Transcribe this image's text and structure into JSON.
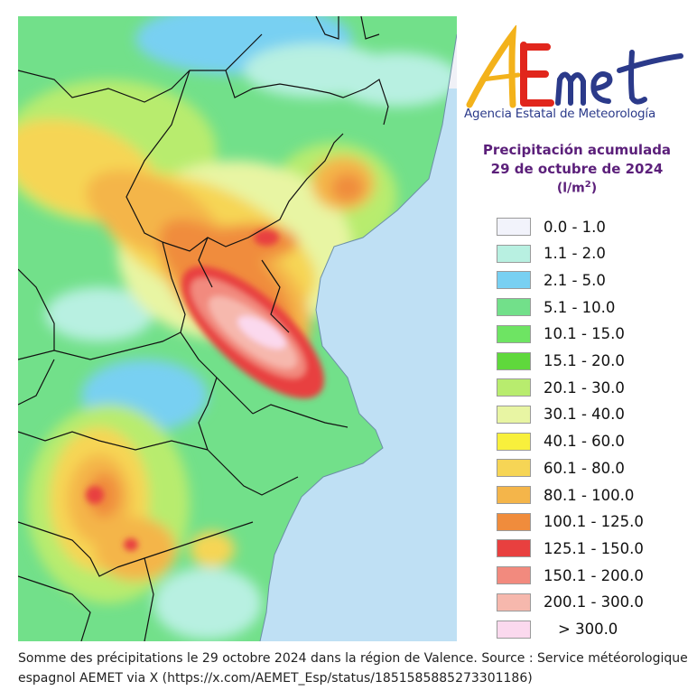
{
  "logo": {
    "wordmark": "AEmet",
    "agency_name": "Agencia Estatal de Meteorología",
    "colors": {
      "A": "#f3b21b",
      "E": "#e1261c",
      "met": "#2b3a8a"
    }
  },
  "map_title": {
    "line1": "Precipitación acumulada",
    "line2": "29 de octubre de 2024",
    "unit_base": "(l/m",
    "unit_sup": "2",
    "unit_end": ")"
  },
  "legend": [
    {
      "label": "0.0 - 1.0",
      "color": "#f2f3fb"
    },
    {
      "label": "1.1 - 2.0",
      "color": "#b8f0e1"
    },
    {
      "label": "2.1 - 5.0",
      "color": "#78d0f2"
    },
    {
      "label": "5.1 - 10.0",
      "color": "#72e08a"
    },
    {
      "label": "10.1 - 15.0",
      "color": "#6ee463"
    },
    {
      "label": "15.1 - 20.0",
      "color": "#5fd83c"
    },
    {
      "label": "20.1 - 30.0",
      "color": "#b8ec6e"
    },
    {
      "label": "30.1 - 40.0",
      "color": "#e8f5a3"
    },
    {
      "label": "40.1 - 60.0",
      "color": "#f8f03c"
    },
    {
      "label": "60.1 - 80.0",
      "color": "#f6d555"
    },
    {
      "label": "80.1 - 100.0",
      "color": "#f4b54a"
    },
    {
      "label": "100.1 - 125.0",
      "color": "#f08c3c"
    },
    {
      "label": "125.1 - 150.0",
      "color": "#e8403f"
    },
    {
      "label": "150.1 - 200.0",
      "color": "#f28a7e"
    },
    {
      "label": "200.1 - 300.0",
      "color": "#f6b8ad"
    },
    {
      "label": "> 300.0",
      "color": "#fbd9ee"
    }
  ],
  "caption": "Somme des précipitations le 29 octobre 2024 dans la région de Valence. Source : Service météorologique espagnol AEMET via X (https://x.com/AEMET_Esp/status/1851585885273301186)"
}
